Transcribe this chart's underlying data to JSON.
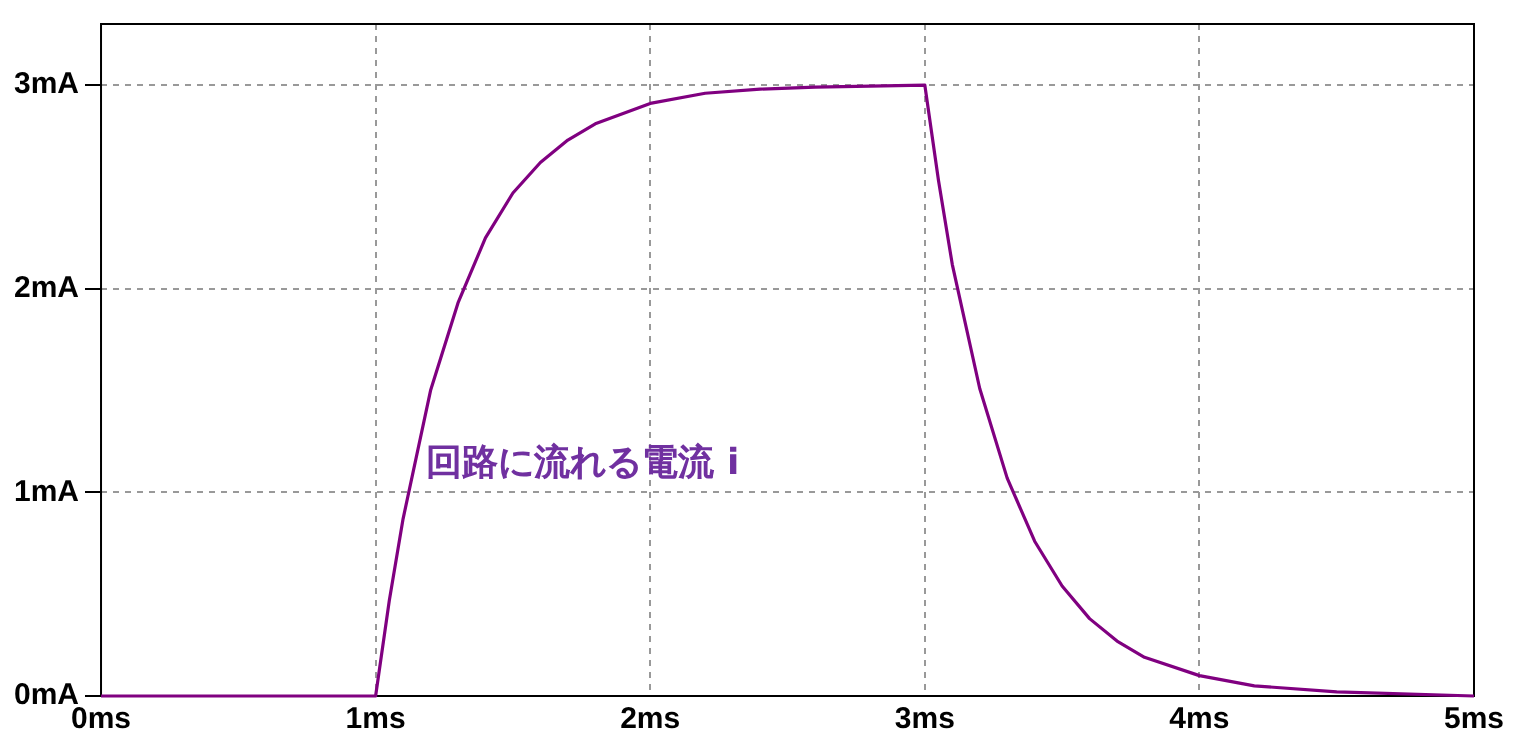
{
  "chart_data": {
    "type": "line",
    "x": [
      0,
      1,
      1.05,
      1.1,
      1.2,
      1.3,
      1.4,
      1.5,
      1.6,
      1.7,
      1.8,
      2,
      2.2,
      2.4,
      2.6,
      3,
      3.05,
      3.1,
      3.2,
      3.3,
      3.4,
      3.5,
      3.6,
      3.7,
      3.8,
      4,
      4.2,
      4.5,
      5
    ],
    "series": [
      {
        "name": "回路に流れる電流 i",
        "color": "#800080",
        "values": [
          0,
          0,
          0.47,
          0.87,
          1.5,
          1.93,
          2.25,
          2.47,
          2.62,
          2.73,
          2.81,
          2.91,
          2.96,
          2.98,
          2.99,
          3,
          2.53,
          2.12,
          1.51,
          1.07,
          0.76,
          0.54,
          0.38,
          0.27,
          0.19,
          0.1,
          0.05,
          0.02,
          0
        ]
      }
    ],
    "xlim": [
      0,
      5
    ],
    "xticks": [
      {
        "value": 0,
        "label": "0ms"
      },
      {
        "value": 1,
        "label": "1ms"
      },
      {
        "value": 2,
        "label": "2ms"
      },
      {
        "value": 3,
        "label": "3ms"
      },
      {
        "value": 4,
        "label": "4ms"
      },
      {
        "value": 5,
        "label": "5ms"
      }
    ],
    "ylim": [
      0,
      3.3
    ],
    "yticks": [
      {
        "value": 0,
        "label": "0mA"
      },
      {
        "value": 1,
        "label": "1mA"
      },
      {
        "value": 2,
        "label": "2mA"
      },
      {
        "value": 3,
        "label": "3mA"
      }
    ],
    "grid": true,
    "legend": false,
    "marker": "none",
    "line_style": "solid"
  }
}
